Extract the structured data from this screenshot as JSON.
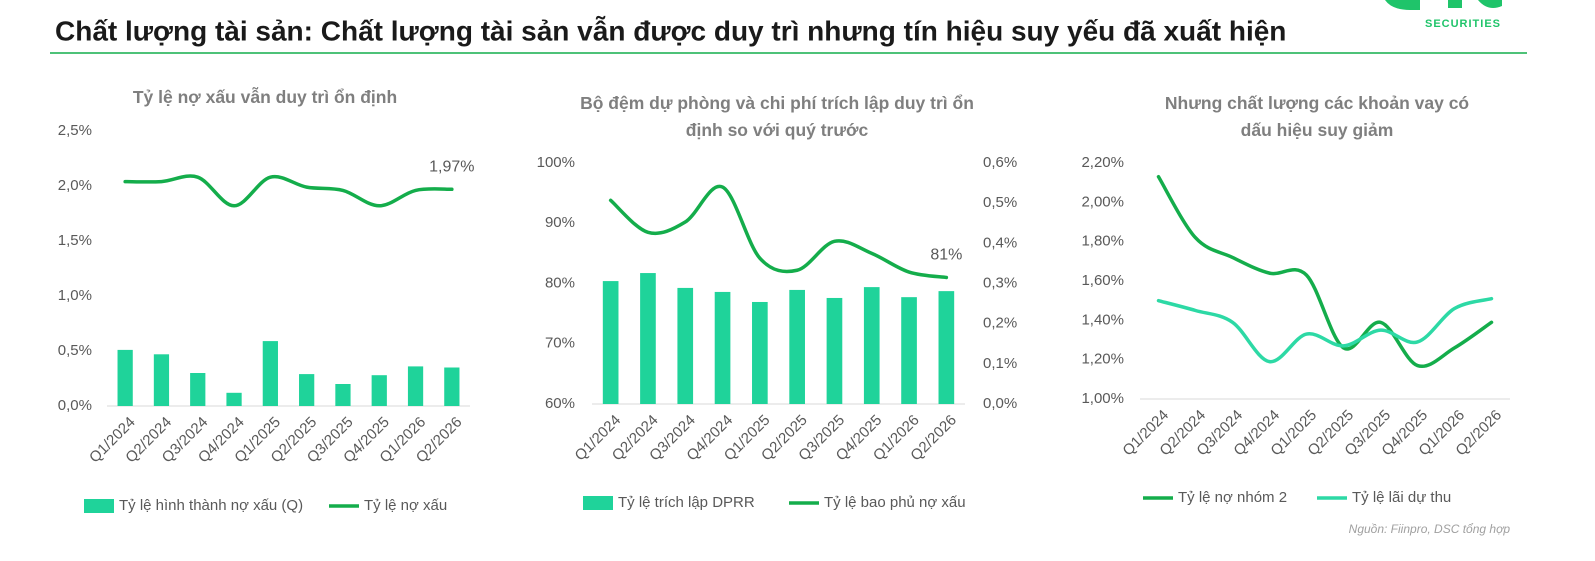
{
  "title": "Chất lượng tài sản: Chất lượng tài sản vẫn được duy trì nhưng tín hiệu suy yếu đã xuất hiện",
  "logo": "SECURITIES",
  "source": "Nguồn: Fiinpro, DSC tổng hợp",
  "chart_data": [
    {
      "type": "bar-line",
      "title": "Tỷ lệ nợ xấu vẫn duy trì ổn định",
      "categories": [
        "Q1/2024",
        "Q2/2024",
        "Q3/2024",
        "Q4/2024",
        "Q1/2025",
        "Q2/2025",
        "Q3/2025",
        "Q4/2025",
        "Q1/2026",
        "Q2/2026"
      ],
      "ylim": [
        0,
        2.5
      ],
      "yticks": [
        {
          "value": 0,
          "label": "0,0%"
        },
        {
          "value": 0.5,
          "label": "0,5%"
        },
        {
          "value": 1,
          "label": "1,0%"
        },
        {
          "value": 1.5,
          "label": "1,5%"
        },
        {
          "value": 2,
          "label": "2,0%"
        },
        {
          "value": 2.5,
          "label": "2,5%"
        }
      ],
      "grid": false,
      "series": [
        {
          "name": "Tỷ lệ hình thành nợ xấu (Q)",
          "type": "bar",
          "color": "#1fd39a",
          "values": [
            0.51,
            0.47,
            0.3,
            0.12,
            0.59,
            0.29,
            0.2,
            0.28,
            0.36,
            0.35
          ]
        },
        {
          "name": "Tỷ lệ nợ xấu",
          "type": "line",
          "color": "#14ad4b",
          "values": [
            2.04,
            2.04,
            2.08,
            1.82,
            2.08,
            1.99,
            1.96,
            1.82,
            1.96,
            1.97
          ],
          "value_labels": [
            null,
            null,
            null,
            null,
            null,
            null,
            null,
            null,
            null,
            "1,97%"
          ]
        }
      ]
    },
    {
      "type": "bar-line",
      "title": "Bộ đệm dự phòng và chi phí trích lập duy trì ổn định so với quý trước",
      "categories": [
        "Q1/2024",
        "Q2/2024",
        "Q3/2024",
        "Q4/2024",
        "Q1/2025",
        "Q2/2025",
        "Q3/2025",
        "Q4/2025",
        "Q1/2026",
        "Q2/2026"
      ],
      "ylim": [
        60,
        100
      ],
      "yticks": [
        {
          "value": 60,
          "label": "60%"
        },
        {
          "value": 70,
          "label": "70%"
        },
        {
          "value": 80,
          "label": "80%"
        },
        {
          "value": 90,
          "label": "90%"
        },
        {
          "value": 100,
          "label": "100%"
        }
      ],
      "y2lim": [
        0,
        0.6
      ],
      "y2ticks": [
        {
          "value": 0,
          "label": "0,0%"
        },
        {
          "value": 0.1,
          "label": "0,1%"
        },
        {
          "value": 0.2,
          "label": "0,2%"
        },
        {
          "value": 0.3,
          "label": "0,3%"
        },
        {
          "value": 0.4,
          "label": "0,4%"
        },
        {
          "value": 0.5,
          "label": "0,5%"
        },
        {
          "value": 0.6,
          "label": "0,6%"
        }
      ],
      "grid": false,
      "series": [
        {
          "name": "Tỷ lệ trích lập DPRR",
          "type": "bar",
          "axis": "y2",
          "color": "#1fd39a",
          "values": [
            0.306,
            0.326,
            0.289,
            0.279,
            0.254,
            0.284,
            0.264,
            0.291,
            0.266,
            0.281
          ]
        },
        {
          "name": "Tỷ lệ bao phủ nợ xấu",
          "type": "line",
          "color": "#14ad4b",
          "values": [
            93.8,
            88.5,
            90.2,
            96.0,
            84.2,
            82.2,
            87.0,
            85.0,
            81.9,
            81
          ],
          "value_labels": [
            null,
            null,
            null,
            null,
            null,
            null,
            null,
            null,
            null,
            "81%"
          ]
        }
      ]
    },
    {
      "type": "line",
      "title": "Nhưng chất lượng các khoản vay có dấu hiệu suy giảm",
      "categories": [
        "Q1/2024",
        "Q2/2024",
        "Q3/2024",
        "Q4/2024",
        "Q1/2025",
        "Q2/2025",
        "Q3/2025",
        "Q4/2025",
        "Q1/2026",
        "Q2/2026"
      ],
      "ylim": [
        1.0,
        2.2
      ],
      "yticks": [
        {
          "value": 1.0,
          "label": "1,00%"
        },
        {
          "value": 1.2,
          "label": "1,20%"
        },
        {
          "value": 1.4,
          "label": "1,40%"
        },
        {
          "value": 1.6,
          "label": "1,60%"
        },
        {
          "value": 1.8,
          "label": "1,80%"
        },
        {
          "value": 2.0,
          "label": "2,00%"
        },
        {
          "value": 2.2,
          "label": "2,20%"
        }
      ],
      "grid": false,
      "series": [
        {
          "name": "Tỷ lệ nợ nhóm 2",
          "type": "line",
          "color": "#14ad4b",
          "values": [
            2.13,
            1.82,
            1.72,
            1.64,
            1.63,
            1.26,
            1.39,
            1.17,
            1.26,
            1.39
          ]
        },
        {
          "name": "Tỷ lệ lãi dự thu",
          "type": "line",
          "color": "#2dd9a5",
          "values": [
            1.5,
            1.45,
            1.39,
            1.19,
            1.33,
            1.27,
            1.35,
            1.29,
            1.46,
            1.51
          ]
        }
      ]
    }
  ]
}
